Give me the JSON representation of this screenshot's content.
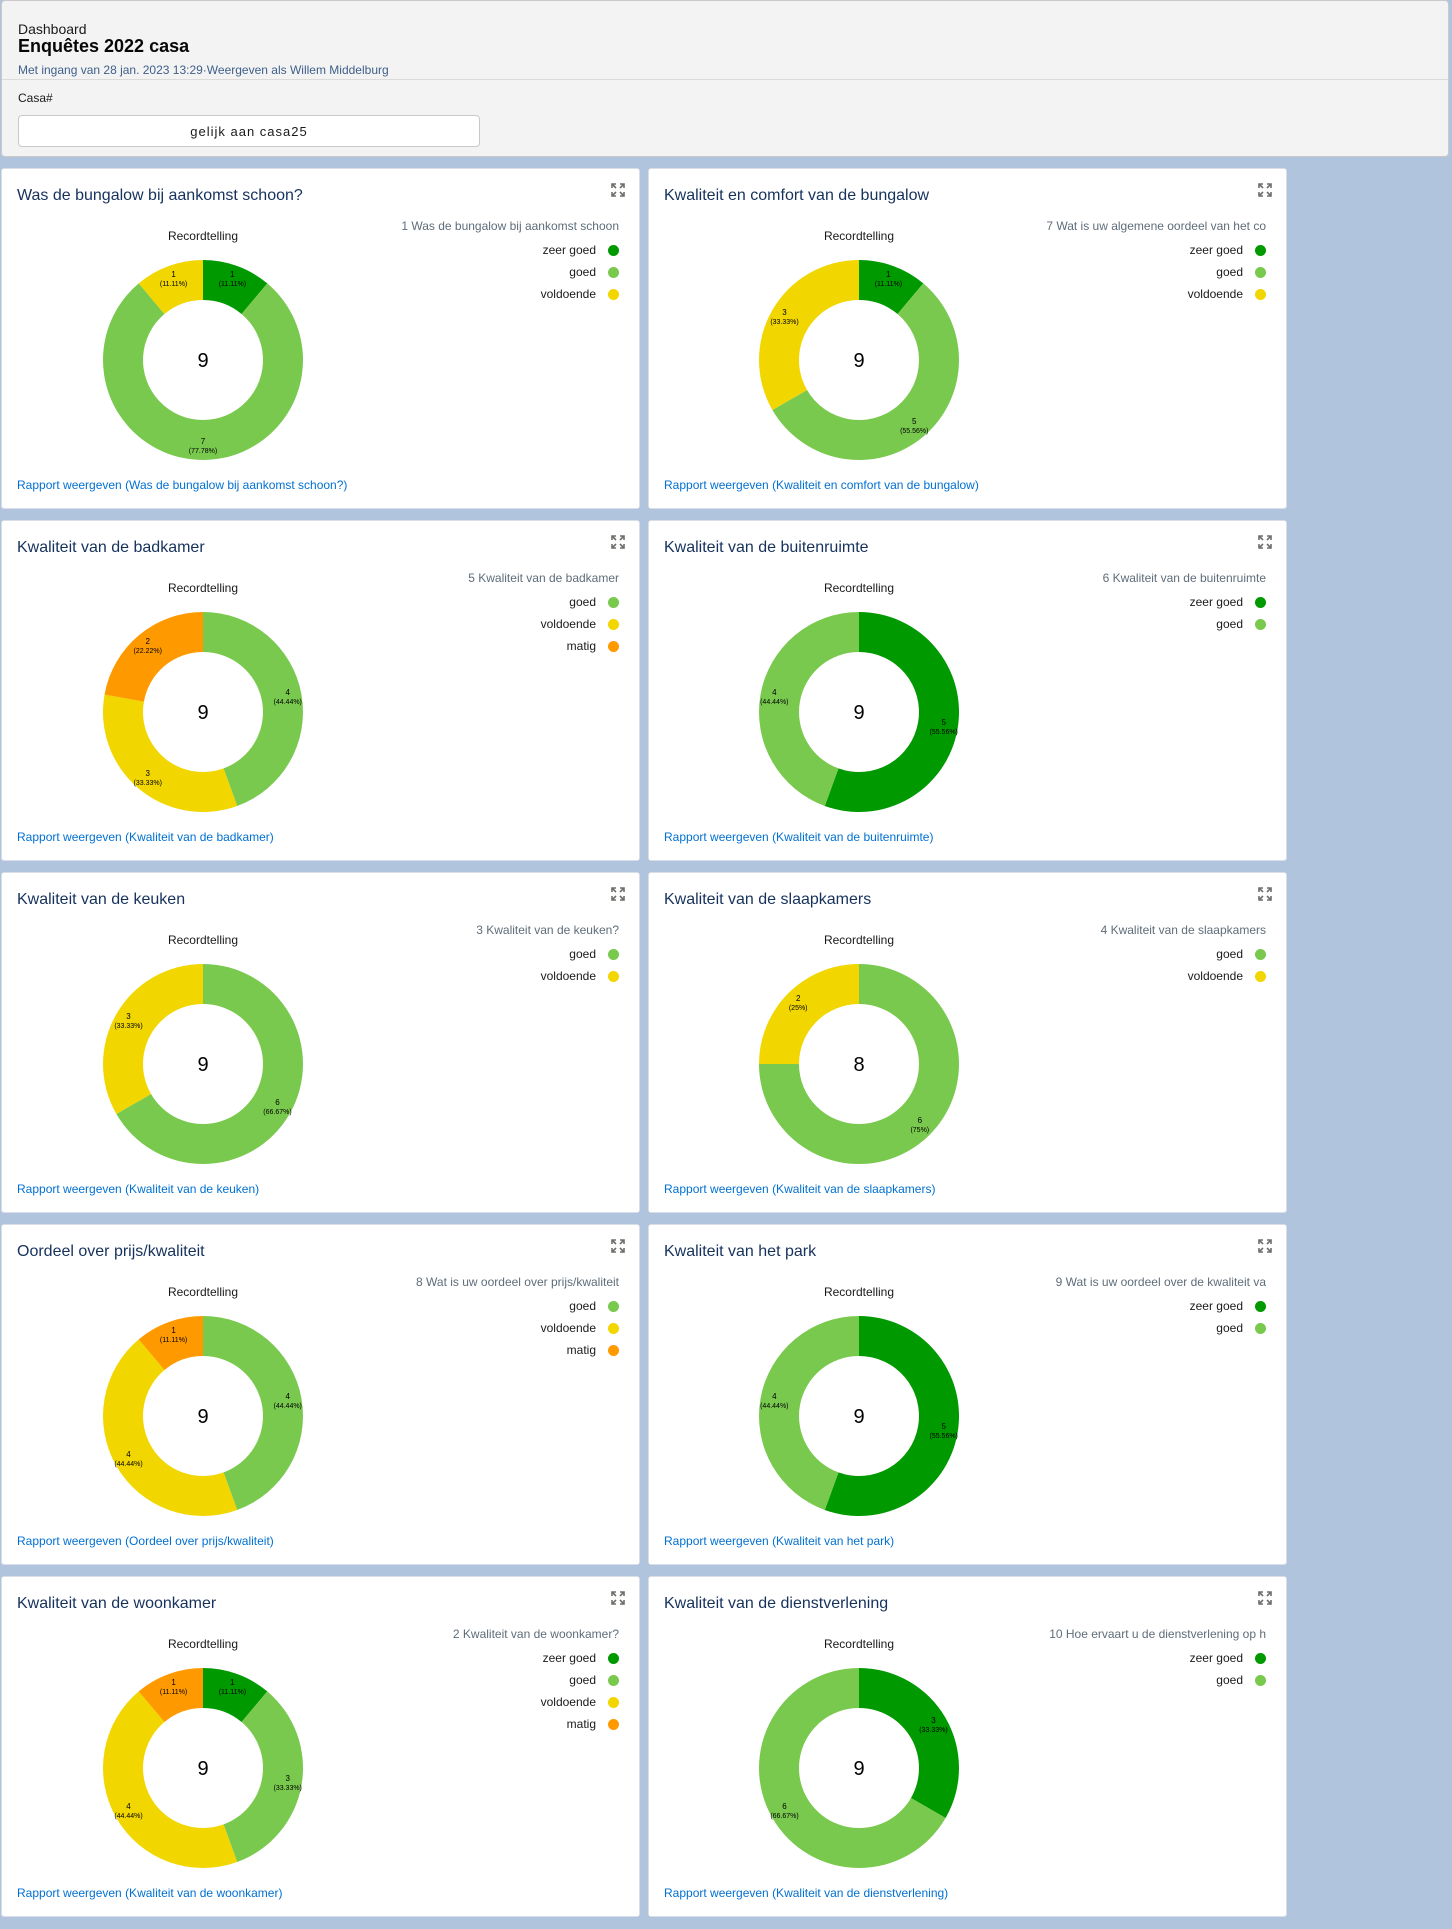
{
  "header": {
    "kicker": "Dashboard",
    "title": "Enquêtes 2022 casa",
    "meta": "Met ingang van 28 jan. 2023 13:29·Weergeven als Willem Middelburg"
  },
  "filter": {
    "label": "Casa#",
    "value": "gelijk aan casa25"
  },
  "colors": {
    "zeer goed": "#009900",
    "goed": "#79c94f",
    "voldoende": "#f1d600",
    "matig": "#ff9900"
  },
  "chart_data": [
    {
      "type": "pie",
      "title": "Was de bungalow bij aankomst schoon?",
      "center_label": "Recordtelling",
      "total": 9,
      "legend_title": "1 Was de bungalow bij aankomst schoon",
      "slices": [
        {
          "label": "zeer goed",
          "value": 1,
          "pct": "11.11%"
        },
        {
          "label": "goed",
          "value": 7,
          "pct": "77.78%"
        },
        {
          "label": "voldoende",
          "value": 1,
          "pct": "11.11%"
        }
      ],
      "link": "Rapport weergeven (Was de bungalow bij aankomst schoon?)"
    },
    {
      "type": "pie",
      "title": "Kwaliteit en comfort van de bungalow",
      "center_label": "Recordtelling",
      "total": 9,
      "legend_title": "7 Wat is uw  algemene oordeel van het co",
      "slices": [
        {
          "label": "zeer goed",
          "value": 1,
          "pct": "11.11%"
        },
        {
          "label": "goed",
          "value": 5,
          "pct": "55.56%"
        },
        {
          "label": "voldoende",
          "value": 3,
          "pct": "33.33%"
        }
      ],
      "link": "Rapport weergeven (Kwaliteit en comfort van de bungalow)"
    },
    {
      "type": "pie",
      "title": "Kwaliteit van de badkamer",
      "center_label": "Recordtelling",
      "total": 9,
      "legend_title": "5 Kwaliteit van de badkamer",
      "slices": [
        {
          "label": "goed",
          "value": 4,
          "pct": "44.44%"
        },
        {
          "label": "voldoende",
          "value": 3,
          "pct": "33.33%"
        },
        {
          "label": "matig",
          "value": 2,
          "pct": "22.22%"
        }
      ],
      "link": "Rapport weergeven (Kwaliteit van de badkamer)"
    },
    {
      "type": "pie",
      "title": "Kwaliteit van de buitenruimte",
      "center_label": "Recordtelling",
      "total": 9,
      "legend_title": "6 Kwaliteit van de buitenruimte",
      "slices": [
        {
          "label": "zeer goed",
          "value": 5,
          "pct": "55.56%"
        },
        {
          "label": "goed",
          "value": 4,
          "pct": "44.44%"
        }
      ],
      "link": "Rapport weergeven (Kwaliteit van de buitenruimte)"
    },
    {
      "type": "pie",
      "title": "Kwaliteit van de keuken",
      "center_label": "Recordtelling",
      "total": 9,
      "legend_title": "3 Kwaliteit van de keuken?",
      "slices": [
        {
          "label": "goed",
          "value": 6,
          "pct": "66.67%"
        },
        {
          "label": "voldoende",
          "value": 3,
          "pct": "33.33%"
        }
      ],
      "link": "Rapport weergeven (Kwaliteit van de keuken)"
    },
    {
      "type": "pie",
      "title": "Kwaliteit van de slaapkamers",
      "center_label": "Recordtelling",
      "total": 8,
      "legend_title": "4 Kwaliteit van de slaapkamers",
      "slices": [
        {
          "label": "goed",
          "value": 6,
          "pct": "75%"
        },
        {
          "label": "voldoende",
          "value": 2,
          "pct": "25%"
        }
      ],
      "link": "Rapport weergeven (Kwaliteit van de slaapkamers)"
    },
    {
      "type": "pie",
      "title": "Oordeel over prijs/kwaliteit",
      "center_label": "Recordtelling",
      "total": 9,
      "legend_title": "8 Wat is uw oordeel over prijs/kwaliteit",
      "slices": [
        {
          "label": "goed",
          "value": 4,
          "pct": "44.44%"
        },
        {
          "label": "voldoende",
          "value": 4,
          "pct": "44.44%"
        },
        {
          "label": "matig",
          "value": 1,
          "pct": "11.11%"
        }
      ],
      "link": "Rapport weergeven (Oordeel over prijs/kwaliteit)"
    },
    {
      "type": "pie",
      "title": "Kwaliteit van het park",
      "center_label": "Recordtelling",
      "total": 9,
      "legend_title": "9 Wat is uw oordeel over de kwaliteit va",
      "slices": [
        {
          "label": "zeer goed",
          "value": 5,
          "pct": "55.56%"
        },
        {
          "label": "goed",
          "value": 4,
          "pct": "44.44%"
        }
      ],
      "link": "Rapport weergeven (Kwaliteit van het park)"
    },
    {
      "type": "pie",
      "title": "Kwaliteit van de woonkamer",
      "center_label": "Recordtelling",
      "total": 9,
      "legend_title": "2 Kwaliteit van de woonkamer?",
      "slices": [
        {
          "label": "zeer goed",
          "value": 1,
          "pct": "11.11%"
        },
        {
          "label": "goed",
          "value": 3,
          "pct": "33.33%"
        },
        {
          "label": "voldoende",
          "value": 4,
          "pct": "44.44%"
        },
        {
          "label": "matig",
          "value": 1,
          "pct": "11.11%"
        }
      ],
      "link": "Rapport weergeven (Kwaliteit van de woonkamer)"
    },
    {
      "type": "pie",
      "title": "Kwaliteit van de dienstverlening",
      "center_label": "Recordtelling",
      "total": 9,
      "legend_title": "10 Hoe ervaart u de dienstverlening op h",
      "slices": [
        {
          "label": "zeer goed",
          "value": 3,
          "pct": "33.33%"
        },
        {
          "label": "goed",
          "value": 6,
          "pct": "66.67%"
        }
      ],
      "link": "Rapport weergeven (Kwaliteit van de dienstverlening)"
    }
  ]
}
